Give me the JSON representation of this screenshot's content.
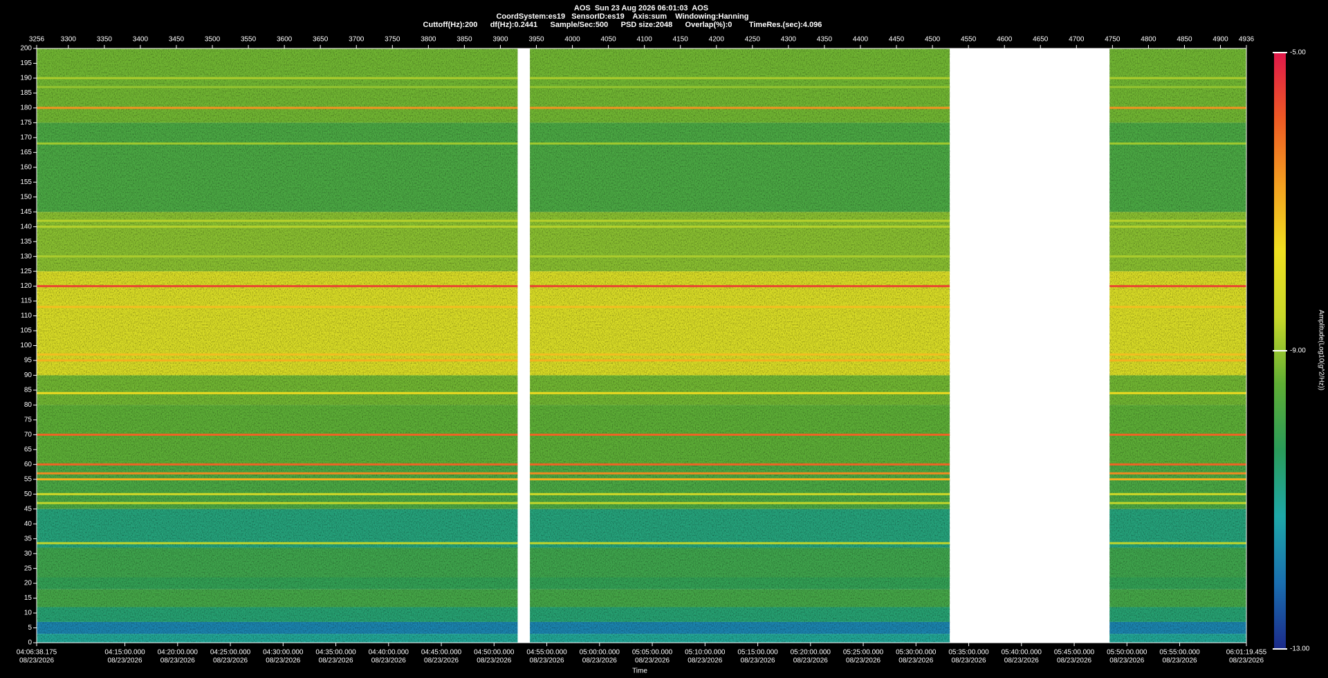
{
  "chart_data": {
    "type": "spectrogram",
    "title": [
      "AOS  Sun 23 Aug 2026 06:01:03  AOS",
      "CoordSystem:es19   SensorID:es19    Axis:sum    Windowing:Hanning",
      "Cuttoff(Hz):200      df(Hz):0.2441      Sample/Sec:500      PSD size:2048      Overlap(%):0        TimeRes.(sec):4.096"
    ],
    "x_label": "Time",
    "colorbar_label": "Amplitude(Log10(g^2/Hz))",
    "xlim": [
      3256,
      4936
    ],
    "xticks": [
      3256,
      3300,
      3350,
      3400,
      3450,
      3500,
      3550,
      3600,
      3650,
      3700,
      3750,
      3800,
      3850,
      3900,
      3950,
      4000,
      4050,
      4100,
      4150,
      4200,
      4250,
      4300,
      4350,
      4400,
      4450,
      4500,
      4550,
      4600,
      4650,
      4700,
      4750,
      4800,
      4850,
      4900,
      4936
    ],
    "x2ticks": [
      {
        "value": 3256,
        "label": "04:06:38.175"
      },
      {
        "value": 3378.52,
        "label": "04:15:00.000"
      },
      {
        "value": 3451.76,
        "label": "04:20:00.000"
      },
      {
        "value": 3525.0,
        "label": "04:25:00.000"
      },
      {
        "value": 3598.25,
        "label": "04:30:00.000"
      },
      {
        "value": 3671.49,
        "label": "04:35:00.000"
      },
      {
        "value": 3744.73,
        "label": "04:40:00.000"
      },
      {
        "value": 3817.97,
        "label": "04:45:00.000"
      },
      {
        "value": 3891.21,
        "label": "04:50:00.000"
      },
      {
        "value": 3964.46,
        "label": "04:55:00.000"
      },
      {
        "value": 4037.7,
        "label": "05:00:00.000"
      },
      {
        "value": 4110.94,
        "label": "05:05:00.000"
      },
      {
        "value": 4184.18,
        "label": "05:10:00.000"
      },
      {
        "value": 4257.43,
        "label": "05:15:00.000"
      },
      {
        "value": 4330.67,
        "label": "05:20:00.000"
      },
      {
        "value": 4403.91,
        "label": "05:25:00.000"
      },
      {
        "value": 4477.15,
        "label": "05:30:00.000"
      },
      {
        "value": 4550.39,
        "label": "05:35:00.000"
      },
      {
        "value": 4623.64,
        "label": "05:40:00.000"
      },
      {
        "value": 4696.88,
        "label": "05:45:00.000"
      },
      {
        "value": 4770.12,
        "label": "05:50:00.000"
      },
      {
        "value": 4843.36,
        "label": "05:55:00.000"
      },
      {
        "value": 4936,
        "label": "06:01:19.455"
      }
    ],
    "x2tick_dates": [
      "08/23/2026",
      "08/23/2026",
      "08/23/2026",
      "08/23/2026",
      "08/23/2026",
      "08/23/2026",
      "08/23/2026",
      "08/23/2026",
      "08/23/2026",
      "08/23/2026",
      "08/23/2026",
      "08/23/2026",
      "08/23/2026",
      "08/23/2026",
      "08/23/2026",
      "08/23/2026",
      "08/23/2026",
      "08/23/2026",
      "08/23/2026",
      "08/23/2026",
      "08/23/2026",
      "08/23/2026",
      "08/23/2026"
    ],
    "ylim": [
      0,
      200
    ],
    "yticks": [
      0,
      5,
      10,
      15,
      20,
      25,
      30,
      35,
      40,
      45,
      50,
      55,
      60,
      65,
      70,
      75,
      80,
      85,
      90,
      95,
      100,
      105,
      110,
      115,
      120,
      125,
      130,
      135,
      140,
      145,
      150,
      155,
      160,
      165,
      170,
      175,
      180,
      185,
      190,
      195,
      200
    ],
    "clim": [
      -13,
      -5
    ],
    "cticks": [
      {
        "value": -5,
        "label": "-5.00"
      },
      {
        "value": -9,
        "label": "-9.00"
      },
      {
        "value": -13,
        "label": "-13.00"
      }
    ],
    "colormap": [
      "#1b2a8a",
      "#1a6fb0",
      "#1ea8a8",
      "#2a9c5a",
      "#5fae34",
      "#c8d82a",
      "#f0e020",
      "#f4a020",
      "#ee5a24",
      "#e0184a"
    ],
    "gap_color": "#ffffff",
    "segments": [
      [
        3256,
        3924
      ],
      [
        3941,
        4524
      ],
      [
        4746,
        4936
      ]
    ],
    "band_edges": [
      0,
      3,
      7,
      12,
      18,
      22,
      32,
      45,
      60,
      80,
      90,
      125,
      145,
      175,
      200
    ],
    "band_amplitudes": [
      -11.0,
      -11.8,
      -10.6,
      -9.9,
      -10.2,
      -10.0,
      -10.7,
      -9.8,
      -9.5,
      -9.3,
      -8.2,
      -9.1,
      -9.8,
      -9.3
    ],
    "lines": {
      "frequencies": [
        33.5,
        47,
        50,
        55,
        57,
        60,
        70,
        84,
        95,
        97,
        113,
        120,
        130,
        140,
        142,
        168,
        180,
        187,
        190
      ],
      "amplitudes": [
        -8.6,
        -8.6,
        -8.3,
        -7.0,
        -6.5,
        -6.0,
        -6.0,
        -7.6,
        -7.0,
        -7.2,
        -7.2,
        -5.6,
        -8.8,
        -8.7,
        -8.7,
        -8.9,
        -6.6,
        -9.0,
        -8.8
      ]
    }
  }
}
